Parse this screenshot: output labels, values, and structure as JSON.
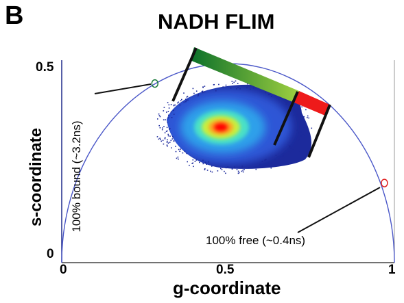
{
  "panel_label": "B",
  "chart_data": {
    "type": "scatter",
    "title": "NADH FLIM",
    "xlabel": "g-coordinate",
    "ylabel": "s-coordinate",
    "xlim": [
      0,
      1
    ],
    "ylim": [
      0,
      0.5
    ],
    "x_ticks": [
      "0",
      "0.5",
      "1"
    ],
    "y_ticks": [
      "0",
      "0.5"
    ],
    "universal_semicircle": {
      "center": [
        0.5,
        0
      ],
      "radius": 0.5
    },
    "density_cloud": {
      "center": [
        0.48,
        0.37
      ],
      "peak_color": "#ff0000",
      "edge_color": "#1c2a9c"
    },
    "reference_points": [
      {
        "label": "100% bound (~3.2ns)",
        "g": 0.28,
        "s": 0.45,
        "color": "#1a7a3a"
      },
      {
        "label": "100% free (~0.4ns)",
        "g": 0.97,
        "s": 0.2,
        "color": "#e02020"
      }
    ],
    "gradient_bar_colors": [
      "#0a6f2a",
      "#9fd040"
    ],
    "red_segment_color": "#ee1a1a",
    "grid": false
  }
}
